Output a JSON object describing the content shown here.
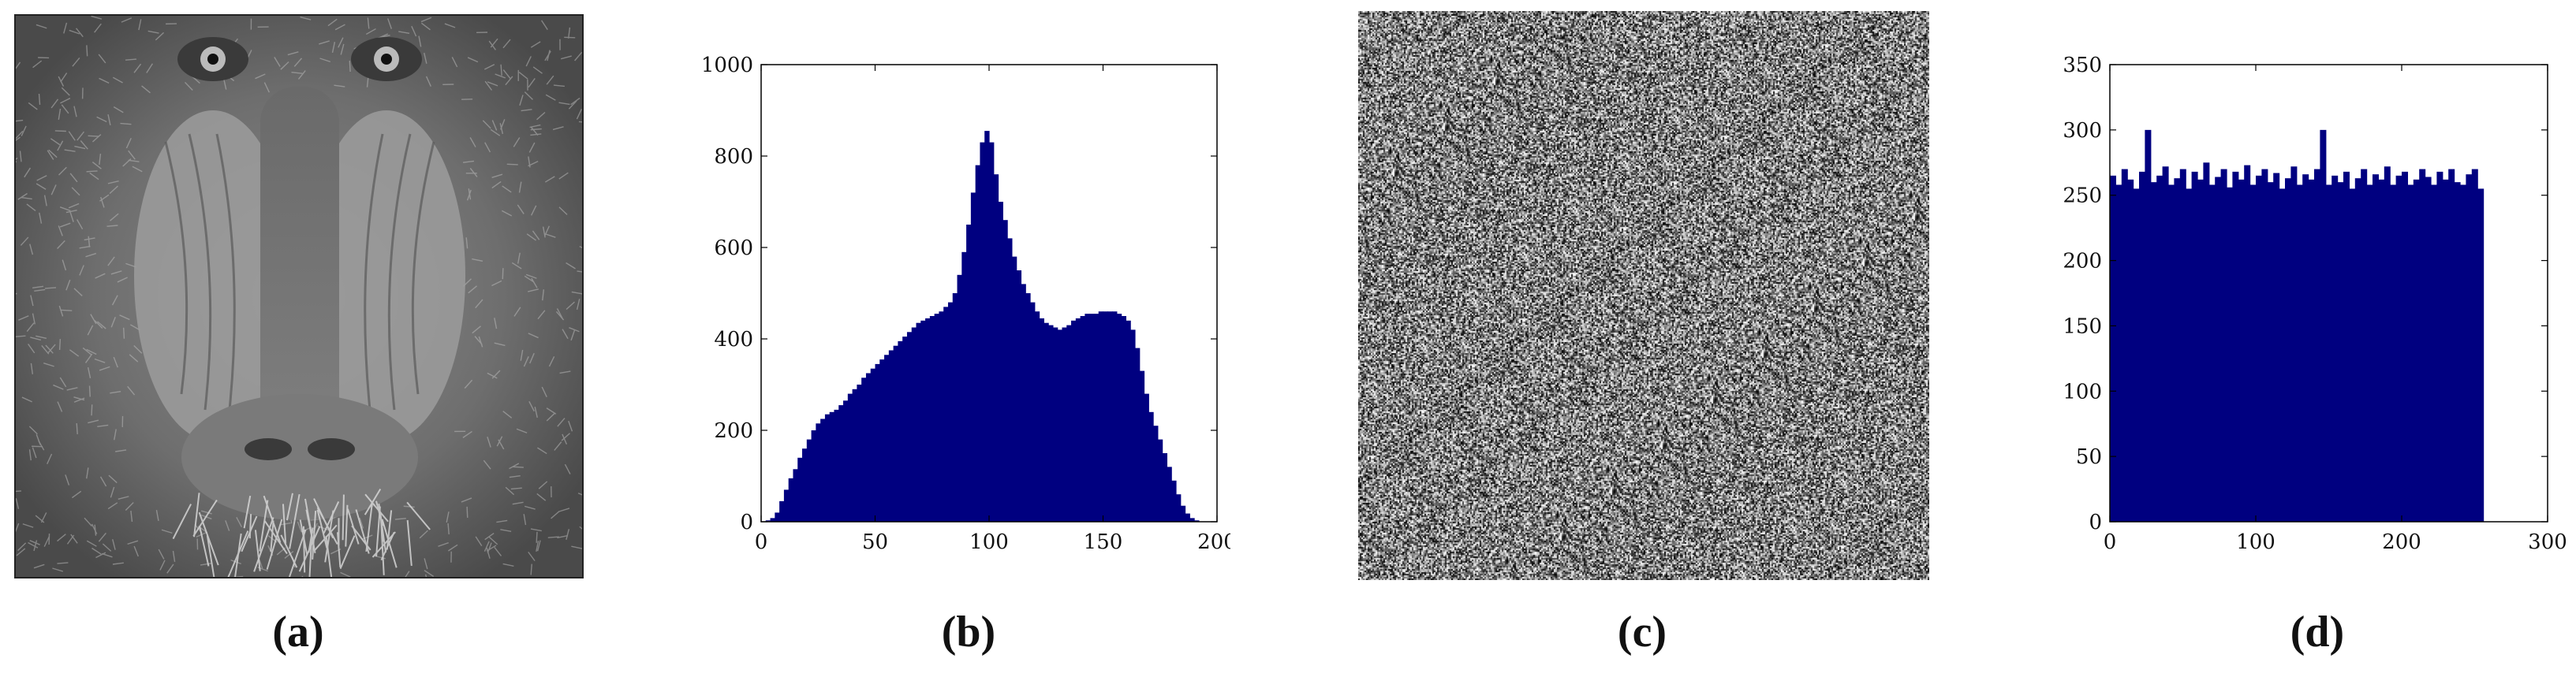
{
  "panels": [
    {
      "id": "a",
      "label": "(a)",
      "type": "image",
      "image_desc_icon": "grayscale-photo"
    },
    {
      "id": "b",
      "label": "(b)",
      "type": "histogram"
    },
    {
      "id": "c",
      "label": "(c)",
      "type": "image",
      "image_desc_icon": "noise-image"
    },
    {
      "id": "d",
      "label": "(d)",
      "type": "histogram"
    }
  ],
  "chart_data": [
    {
      "type": "bar",
      "panel": "b",
      "title": "",
      "xlabel": "",
      "ylabel": "",
      "xlim": [
        0,
        200
      ],
      "ylim": [
        0,
        1000
      ],
      "xticks": [
        0,
        50,
        100,
        150,
        200
      ],
      "yticks": [
        0,
        200,
        400,
        600,
        800,
        1000
      ],
      "bar_color": "#000080",
      "x": [
        0,
        2,
        4,
        6,
        8,
        10,
        12,
        14,
        16,
        18,
        20,
        22,
        24,
        26,
        28,
        30,
        32,
        34,
        36,
        38,
        40,
        42,
        44,
        46,
        48,
        50,
        52,
        54,
        56,
        58,
        60,
        62,
        64,
        66,
        68,
        70,
        72,
        74,
        76,
        78,
        80,
        82,
        84,
        86,
        88,
        90,
        92,
        94,
        96,
        98,
        100,
        102,
        104,
        106,
        108,
        110,
        112,
        114,
        116,
        118,
        120,
        122,
        124,
        126,
        128,
        130,
        132,
        134,
        136,
        138,
        140,
        142,
        144,
        146,
        148,
        150,
        152,
        154,
        156,
        158,
        160,
        162,
        164,
        166,
        168,
        170,
        172,
        174,
        176,
        178,
        180,
        182,
        184,
        186,
        188,
        190,
        192,
        194,
        196,
        198
      ],
      "values": [
        0,
        3,
        8,
        20,
        45,
        70,
        95,
        115,
        140,
        160,
        180,
        200,
        215,
        225,
        235,
        240,
        245,
        255,
        265,
        280,
        290,
        300,
        315,
        325,
        335,
        345,
        355,
        365,
        375,
        385,
        395,
        405,
        415,
        425,
        435,
        440,
        445,
        450,
        455,
        460,
        470,
        480,
        500,
        540,
        590,
        650,
        720,
        780,
        830,
        855,
        830,
        760,
        700,
        660,
        620,
        580,
        550,
        520,
        500,
        480,
        460,
        445,
        435,
        430,
        425,
        420,
        425,
        430,
        440,
        445,
        450,
        455,
        455,
        455,
        460,
        460,
        460,
        460,
        455,
        450,
        440,
        420,
        380,
        330,
        280,
        240,
        210,
        180,
        150,
        120,
        90,
        60,
        35,
        18,
        8,
        3,
        0,
        0,
        0,
        0
      ]
    },
    {
      "type": "bar",
      "panel": "d",
      "title": "",
      "xlabel": "",
      "ylabel": "",
      "xlim": [
        0,
        300
      ],
      "ylim": [
        0,
        350
      ],
      "xticks": [
        0,
        100,
        200,
        300
      ],
      "yticks": [
        0,
        50,
        100,
        150,
        200,
        250,
        300,
        350
      ],
      "bar_color": "#000080",
      "x": [
        0,
        4,
        8,
        12,
        16,
        20,
        24,
        28,
        32,
        36,
        40,
        44,
        48,
        52,
        56,
        60,
        64,
        68,
        72,
        76,
        80,
        84,
        88,
        92,
        96,
        100,
        104,
        108,
        112,
        116,
        120,
        124,
        128,
        132,
        136,
        140,
        144,
        148,
        152,
        156,
        160,
        164,
        168,
        172,
        176,
        180,
        184,
        188,
        192,
        196,
        200,
        204,
        208,
        212,
        216,
        220,
        224,
        228,
        232,
        236,
        240,
        244,
        248,
        252
      ],
      "values": [
        265,
        258,
        270,
        262,
        255,
        268,
        300,
        260,
        265,
        272,
        258,
        263,
        270,
        255,
        268,
        262,
        275,
        258,
        264,
        270,
        256,
        268,
        262,
        273,
        258,
        265,
        270,
        260,
        267,
        255,
        263,
        272,
        258,
        266,
        262,
        270,
        300,
        258,
        265,
        260,
        268,
        255,
        263,
        270,
        258,
        266,
        262,
        272,
        258,
        265,
        268,
        258,
        262,
        270,
        264,
        258,
        268,
        262,
        270,
        260,
        258,
        266,
        270,
        255
      ]
    }
  ]
}
